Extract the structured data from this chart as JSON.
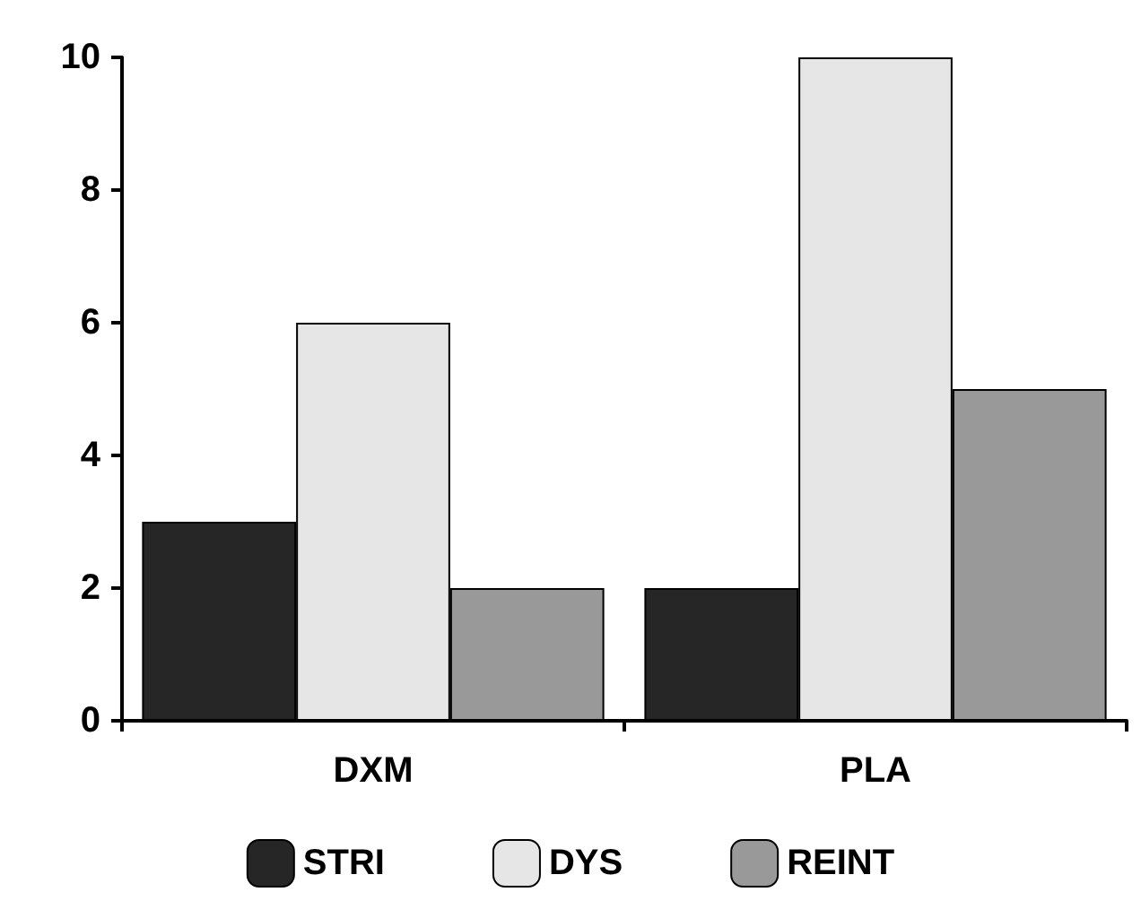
{
  "chart_data": {
    "type": "bar",
    "categories": [
      "DXM",
      "PLA"
    ],
    "series": [
      {
        "name": "STRI",
        "color": "#262626",
        "values": [
          3,
          2
        ]
      },
      {
        "name": "DYS",
        "color": "#e6e6e6",
        "values": [
          6,
          10
        ]
      },
      {
        "name": "REINT",
        "color": "#999999",
        "values": [
          2,
          5
        ]
      }
    ],
    "ylim": [
      0,
      10
    ],
    "yticks": [
      0,
      2,
      4,
      6,
      8,
      10
    ],
    "grid": false,
    "legend": "bottom"
  }
}
